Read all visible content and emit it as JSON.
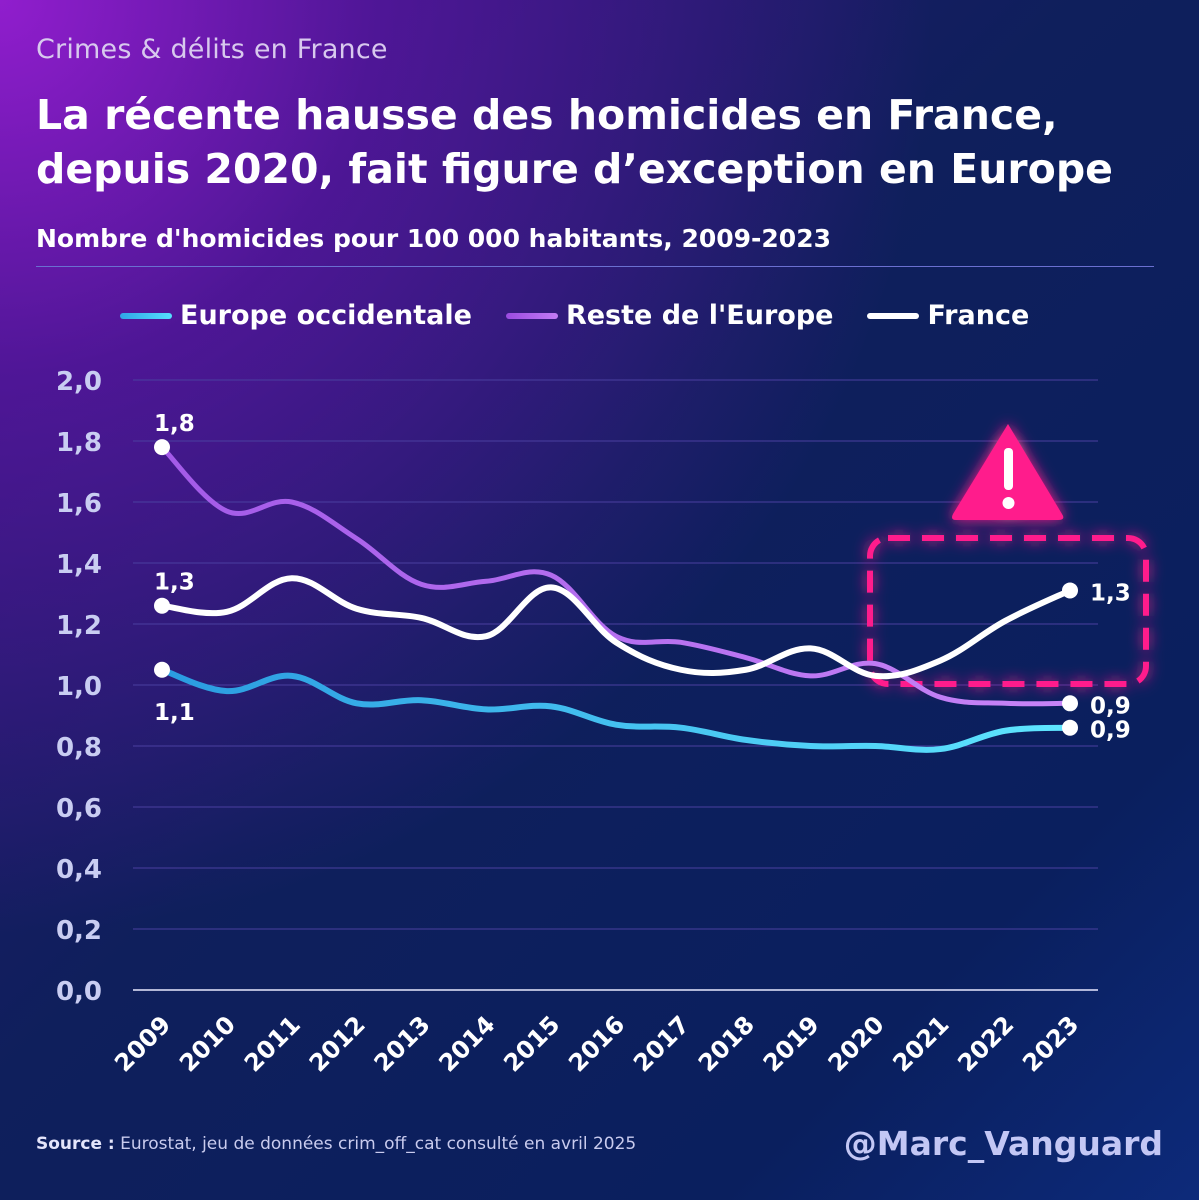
{
  "header": {
    "kicker": "Crimes & délits en France",
    "title": "La récente hausse des homicides en France, depuis 2020, fait figure d’exception en Europe",
    "subtitle": "Nombre d'homicides pour 100 000 habitants, 2009-2023"
  },
  "footer": {
    "source_label": "Source :",
    "source_text": " Eurostat, jeu de données crim_off_cat consulté en avril 2025",
    "handle": "@Marc_Vanguard"
  },
  "colors": {
    "europe_occidentale": "#4fd2ff",
    "reste_europe": "#b065f0",
    "france": "#ffffff",
    "alert": "#ff1a8c",
    "grid": "#4a3fa0",
    "axis_text": "#c9cdf2"
  },
  "annotation": {
    "icon": "warning-triangle-icon",
    "highlight": "2020-2023 France rise"
  },
  "chart_data": {
    "type": "line",
    "title": "Nombre d'homicides pour 100 000 habitants, 2009-2023",
    "xlabel": "",
    "ylabel": "",
    "categories": [
      "2009",
      "2010",
      "2011",
      "2012",
      "2013",
      "2014",
      "2015",
      "2016",
      "2017",
      "2018",
      "2019",
      "2020",
      "2021",
      "2022",
      "2023"
    ],
    "ylim": [
      0,
      2.0
    ],
    "yticks": [
      "0,0",
      "0,2",
      "0,4",
      "0,6",
      "0,8",
      "1,0",
      "1,2",
      "1,4",
      "1,6",
      "1,8",
      "2,0"
    ],
    "grid": true,
    "legend": "top",
    "series": [
      {
        "name": "Europe occidentale",
        "key": "europe_occidentale",
        "values": [
          1.05,
          0.98,
          1.03,
          0.94,
          0.95,
          0.92,
          0.93,
          0.87,
          0.86,
          0.82,
          0.8,
          0.8,
          0.79,
          0.85,
          0.86
        ],
        "label_start": "1,1",
        "label_end": "0,9"
      },
      {
        "name": "Reste de l'Europe",
        "key": "reste_europe",
        "values": [
          1.78,
          1.57,
          1.6,
          1.48,
          1.33,
          1.34,
          1.36,
          1.16,
          1.14,
          1.09,
          1.03,
          1.07,
          0.96,
          0.94,
          0.94
        ],
        "label_start": "1,8",
        "label_end": "0,9"
      },
      {
        "name": "France",
        "key": "france",
        "values": [
          1.26,
          1.24,
          1.35,
          1.25,
          1.22,
          1.16,
          1.32,
          1.14,
          1.05,
          1.05,
          1.12,
          1.03,
          1.08,
          1.21,
          1.31
        ],
        "label_start": "1,3",
        "label_end": "1,3"
      }
    ]
  }
}
